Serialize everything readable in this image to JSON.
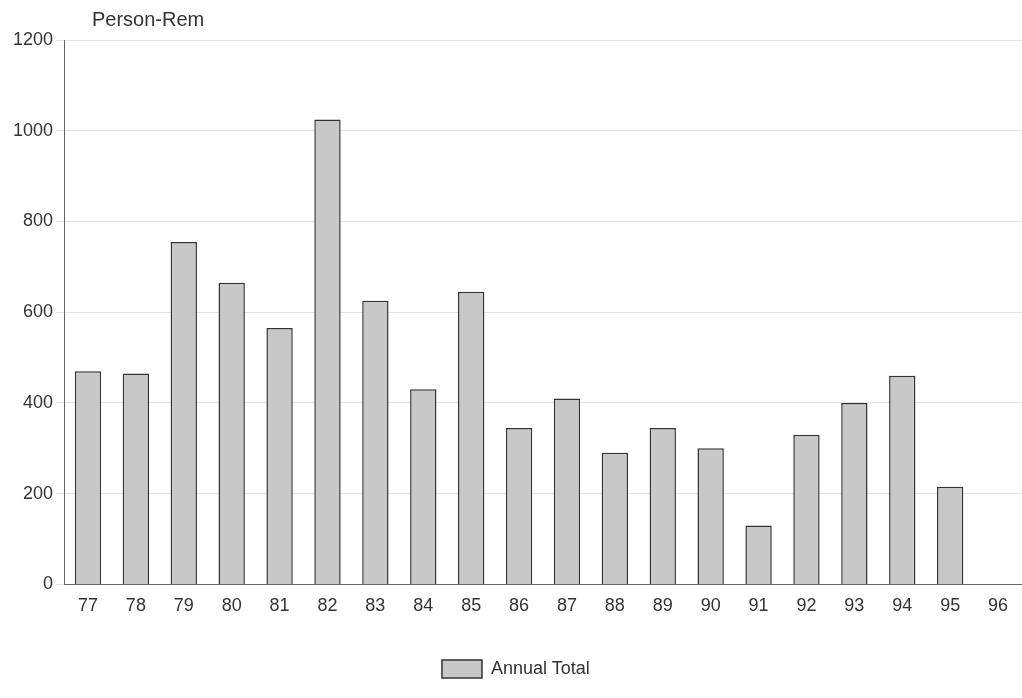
{
  "chart_data": {
    "type": "bar",
    "ylabel": "Person-Rem",
    "categories": [
      "77",
      "78",
      "79",
      "80",
      "81",
      "82",
      "83",
      "84",
      "85",
      "86",
      "87",
      "88",
      "89",
      "90",
      "91",
      "92",
      "93",
      "94",
      "95",
      "96"
    ],
    "series": [
      {
        "name": "Annual Total",
        "color": "#c8c8c8",
        "values": [
          470,
          465,
          755,
          665,
          565,
          1025,
          625,
          430,
          645,
          345,
          410,
          290,
          345,
          300,
          130,
          330,
          400,
          460,
          215,
          0
        ]
      }
    ],
    "ylim": [
      0,
      1200
    ],
    "yticks": [
      0,
      200,
      400,
      600,
      800,
      1000,
      1200
    ],
    "grid": "y",
    "legend": "bottom"
  }
}
